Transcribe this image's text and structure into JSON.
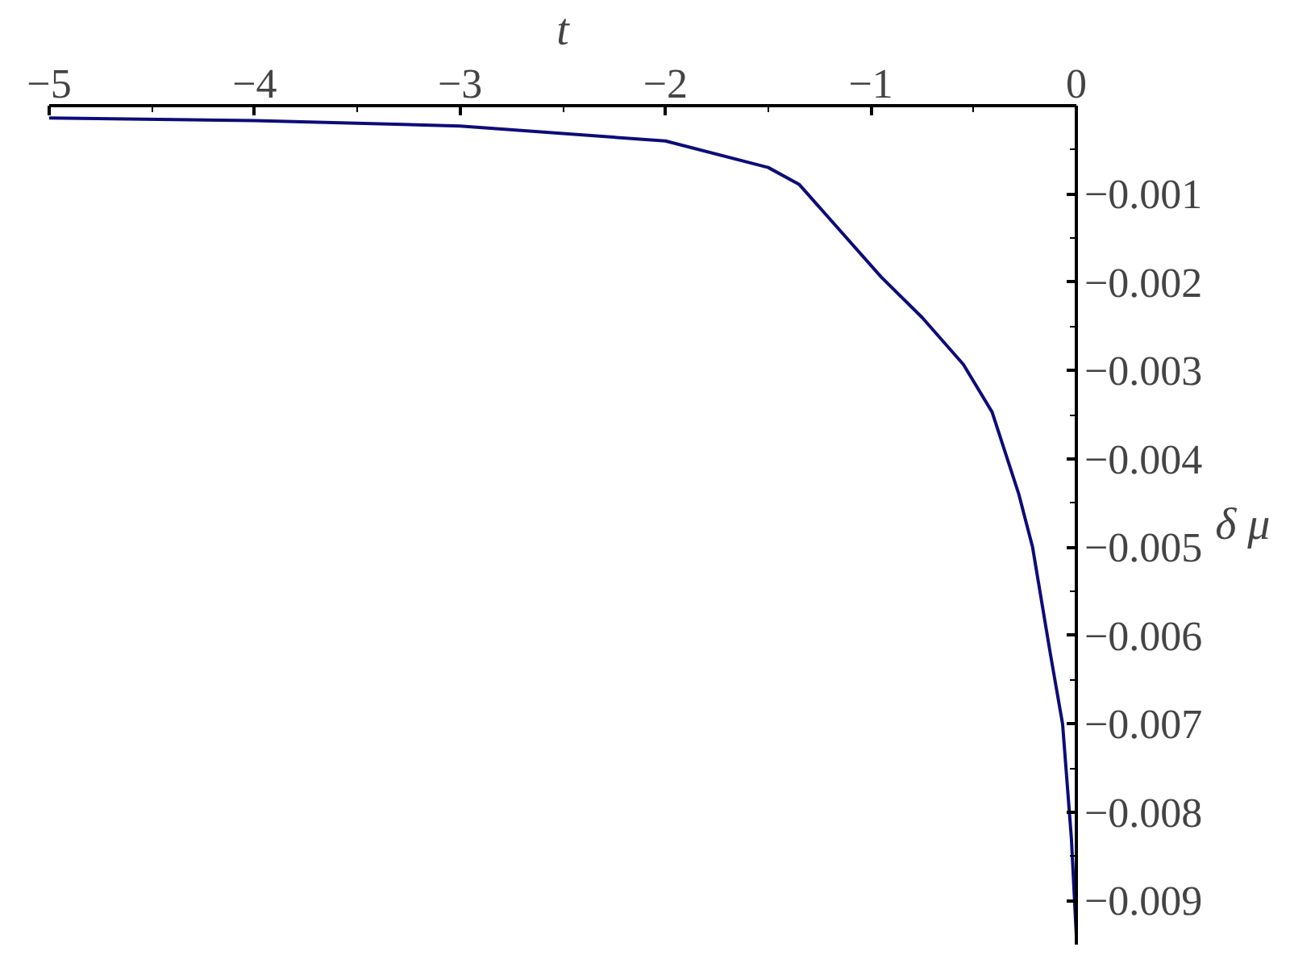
{
  "chart_data": {
    "type": "line",
    "xlabel": "t",
    "ylabel": "δ μ",
    "x": [
      -5,
      -4,
      -3,
      -2,
      -1.5,
      -1.35,
      -0.95,
      -0.75,
      -0.55,
      -0.41,
      -0.28,
      -0.213,
      -0.127,
      -0.067,
      -0.024,
      0
    ],
    "series": [
      {
        "color": "#0c0c78",
        "values": [
          -0.00014,
          -0.00017,
          -0.00023,
          -0.0004,
          -0.0007,
          -0.00089,
          -0.00194,
          -0.0024,
          -0.00293,
          -0.00347,
          -0.0044,
          -0.005,
          -0.0062,
          -0.007,
          -0.0083,
          -0.0094
        ]
      }
    ],
    "xlim": [
      -5,
      0
    ],
    "ylim": [
      -0.0095,
      0
    ],
    "xticks": [
      {
        "value": -5,
        "label": "−5"
      },
      {
        "value": -4.5,
        "label": null
      },
      {
        "value": -4,
        "label": "−4"
      },
      {
        "value": -3.5,
        "label": null
      },
      {
        "value": -3,
        "label": "−3"
      },
      {
        "value": -2.5,
        "label": null
      },
      {
        "value": -2,
        "label": "−2"
      },
      {
        "value": -1.5,
        "label": null
      },
      {
        "value": -1,
        "label": "−1"
      },
      {
        "value": -0.5,
        "label": null
      },
      0
    ],
    "yticks": [
      {
        "value": -0.0005,
        "label": null
      },
      {
        "value": -0.001,
        "label": "−0.001"
      },
      {
        "value": -0.0015,
        "label": null
      },
      {
        "value": -0.002,
        "label": "−0.002"
      },
      {
        "value": -0.0025,
        "label": null
      },
      {
        "value": -0.003,
        "label": "−0.003"
      },
      {
        "value": -0.0035,
        "label": null
      },
      {
        "value": -0.004,
        "label": "−0.004"
      },
      {
        "value": -0.0045,
        "label": null
      },
      {
        "value": -0.005,
        "label": "−0.005"
      },
      {
        "value": -0.0055,
        "label": null
      },
      {
        "value": -0.006,
        "label": "−0.006"
      },
      {
        "value": -0.0065,
        "label": null
      },
      {
        "value": -0.007,
        "label": "−0.007"
      },
      {
        "value": -0.0075,
        "label": null
      },
      {
        "value": -0.008,
        "label": "−0.008"
      },
      {
        "value": -0.0085,
        "label": null
      },
      {
        "value": -0.009,
        "label": "−0.009"
      }
    ],
    "grid": false,
    "line_style": "solid"
  }
}
